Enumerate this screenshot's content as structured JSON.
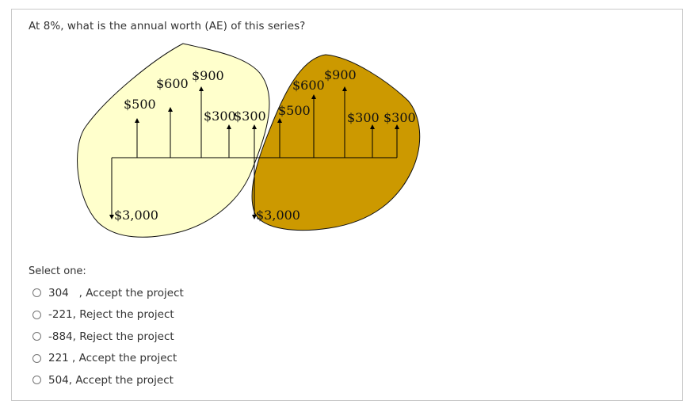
{
  "question": {
    "text": "At 8%, what is the annual worth (AE) of this series?"
  },
  "diagram": {
    "left_blob": {
      "color": "#ffffcc",
      "labels": {
        "amount_500": "$500",
        "amount_600": "$600",
        "amount_900": "$900",
        "amount_300_a": "$300",
        "amount_300_b": "$300",
        "amount_3000": "$3,000"
      }
    },
    "right_blob": {
      "color": "#cc9900",
      "labels": {
        "amount_500": "$500",
        "amount_600": "$600",
        "amount_900": "$900",
        "amount_300_a": "$300",
        "amount_300_b": "$300",
        "amount_3000": "$3,000"
      }
    }
  },
  "answers": {
    "prompt": "Select one:",
    "options": [
      {
        "label": "304   , Accept the project",
        "selected": false
      },
      {
        "label": "-221, Reject the project",
        "selected": false
      },
      {
        "label": "-884, Reject the project",
        "selected": false
      },
      {
        "label": "221 , Accept the project",
        "selected": false
      },
      {
        "label": "504, Accept the project",
        "selected": false
      }
    ]
  }
}
